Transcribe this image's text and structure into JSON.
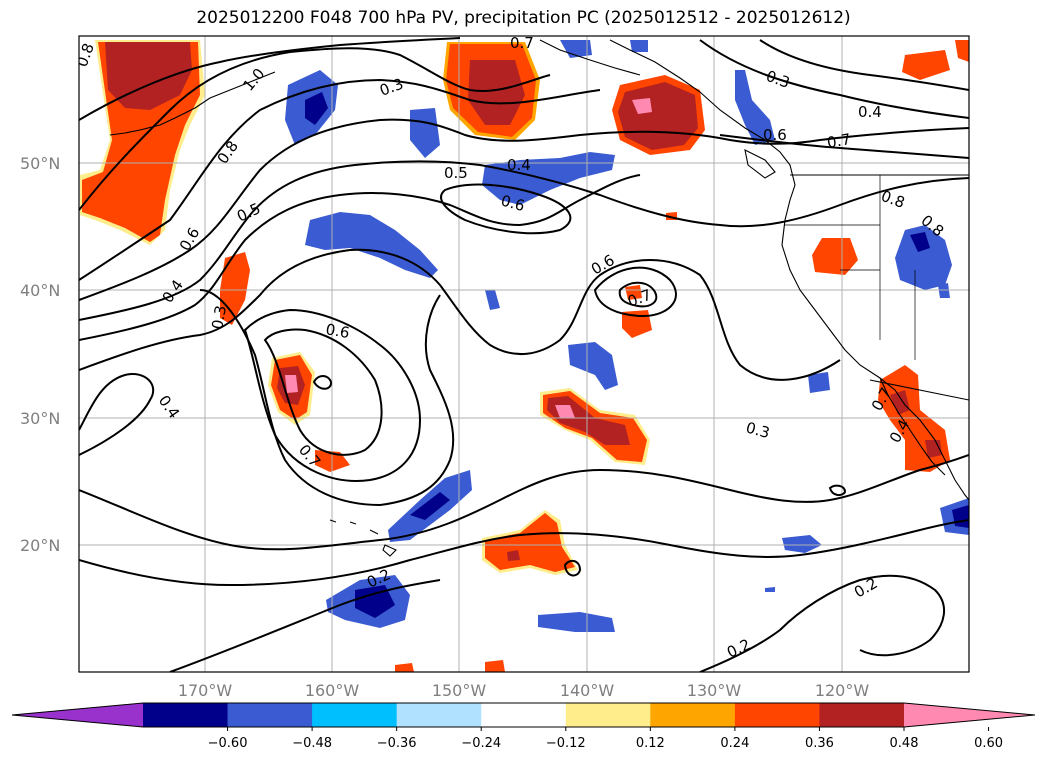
{
  "title": "2025012200 F048 700 hPa PV, precipitation PC (2025012512 - 2025012612)",
  "lat_labels": [
    "50°N",
    "40°N",
    "30°N",
    "20°N"
  ],
  "lon_labels": [
    "170°W",
    "160°W",
    "150°W",
    "140°W",
    "130°W",
    "120°W"
  ],
  "contour_labels": [
    "0.8",
    "0.7",
    "0.3",
    "1.0",
    "0.8",
    "0.6",
    "0.4",
    "0.3",
    "0.4",
    "0.5",
    "0.4",
    "0.6",
    "0.5",
    "0.6",
    "0.7",
    "0.6",
    "0.7",
    "0.3",
    "0.4",
    "0.6",
    "0.7",
    "0.8",
    "0.8",
    "0.7",
    "0.4",
    "0.3",
    "0.2",
    "0.2",
    "0.2"
  ],
  "colorbar": {
    "colors": [
      "#9932cc",
      "#00008b",
      "#3a5bd1",
      "#00bfff",
      "#b0e2ff",
      "#ffffff",
      "#ffec8b",
      "#ffa500",
      "#ff4500",
      "#b22222",
      "#ff89b0"
    ],
    "ticks": [
      "−0.60",
      "−0.48",
      "−0.36",
      "−0.24",
      "−0.12",
      "0.12",
      "0.24",
      "0.36",
      "0.48",
      "0.60"
    ]
  },
  "legend": {
    "positive": [
      "#ffec8b",
      "#ffa500",
      "#ff4500",
      "#b22222",
      "#ff89b0"
    ],
    "negative": [
      "#b0e2ff",
      "#00bfff",
      "#3a5bd1",
      "#00008b"
    ]
  }
}
